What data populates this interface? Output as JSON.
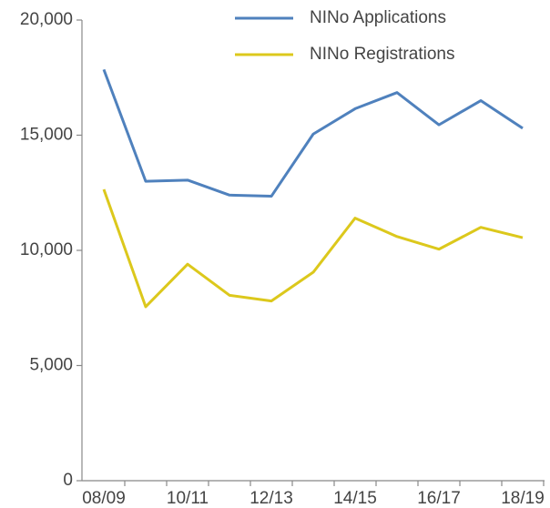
{
  "chart_data": {
    "type": "line",
    "categories": [
      "08/09",
      null,
      "10/11",
      null,
      "12/13",
      null,
      "14/15",
      null,
      "16/17",
      null,
      "18/19"
    ],
    "series": [
      {
        "name": "NINo Applications",
        "color": "#4f81bd",
        "values": [
          17850,
          13000,
          13050,
          12400,
          12350,
          15050,
          16150,
          16850,
          15450,
          16500,
          15300
        ]
      },
      {
        "name": "NINo Registrations",
        "color": "#dcc81c",
        "values": [
          12650,
          7550,
          9400,
          8050,
          7800,
          9050,
          11400,
          10600,
          10050,
          11000,
          10550
        ]
      }
    ],
    "ylim": [
      0,
      20000
    ],
    "yticks": [
      0,
      {
        "value": 5000,
        "label": "5,000"
      },
      {
        "value": 10000,
        "label": "10,000"
      },
      {
        "value": 15000,
        "label": "15,000"
      },
      {
        "value": 20000,
        "label": "20,000"
      }
    ],
    "legend": "top-right"
  }
}
